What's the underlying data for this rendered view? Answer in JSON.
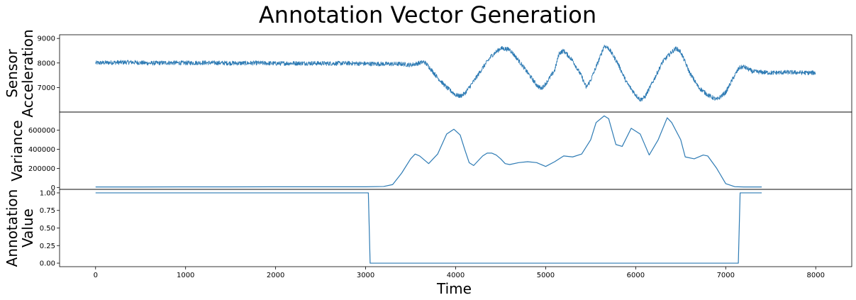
{
  "figure": {
    "title": "Annotation Vector Generation"
  },
  "chart_data": [
    {
      "type": "line",
      "ylabel": [
        "Sensor",
        "Acceleration"
      ],
      "xlabel": "",
      "xlim": [
        -400,
        8400
      ],
      "ylim": [
        6000,
        9150
      ],
      "yticks": [
        7000,
        8000,
        9000
      ],
      "yticklabels": [
        "7000",
        "8000",
        "9000"
      ],
      "series_color": "#2e7bb4",
      "noise_amplitude": 90,
      "series": [
        {
          "x": [
            0,
            200,
            400,
            600,
            800,
            1000,
            1200,
            1400,
            1600,
            1800,
            2000,
            2200,
            2400,
            2600,
            2800,
            3000,
            3200,
            3400,
            3500,
            3600,
            3650,
            3700,
            3800,
            3900,
            4000,
            4050,
            4100,
            4200,
            4300,
            4400,
            4500,
            4600,
            4700,
            4800,
            4900,
            4950,
            5000,
            5100,
            5150,
            5200,
            5300,
            5400,
            5450,
            5500,
            5600,
            5650,
            5700,
            5800,
            5900,
            6000,
            6050,
            6100,
            6200,
            6300,
            6400,
            6450,
            6500,
            6600,
            6700,
            6800,
            6900,
            7000,
            7100,
            7150,
            7200,
            7300,
            7500,
            7700,
            7900,
            8000
          ],
          "values": [
            8000,
            8020,
            8030,
            7990,
            8010,
            8000,
            8010,
            8000,
            7990,
            8000,
            7980,
            7990,
            7990,
            7980,
            7990,
            7970,
            7960,
            7960,
            7920,
            8000,
            8050,
            7860,
            7400,
            7000,
            6700,
            6650,
            6750,
            7250,
            7800,
            8300,
            8600,
            8550,
            8100,
            7600,
            7100,
            6950,
            7150,
            7700,
            8400,
            8500,
            8100,
            7450,
            7000,
            7300,
            8200,
            8700,
            8600,
            8000,
            7200,
            6700,
            6500,
            6600,
            7300,
            8050,
            8450,
            8600,
            8450,
            7600,
            7000,
            6700,
            6500,
            6800,
            7500,
            7800,
            7850,
            7650,
            7600,
            7620,
            7600,
            7600
          ]
        }
      ]
    },
    {
      "type": "line",
      "ylabel": [
        "Variance"
      ],
      "xlabel": "",
      "xlim": [
        -400,
        8400
      ],
      "ylim": [
        -20000,
        790000
      ],
      "yticks": [
        0,
        200000,
        400000,
        600000
      ],
      "yticklabels": [
        "0",
        "200000",
        "400000",
        "600000"
      ],
      "series_color": "#2e7bb4",
      "series": [
        {
          "x": [
            0,
            500,
            1000,
            1500,
            2000,
            2500,
            3000,
            3200,
            3300,
            3400,
            3500,
            3550,
            3600,
            3700,
            3800,
            3900,
            3980,
            4050,
            4100,
            4150,
            4200,
            4300,
            4350,
            4400,
            4450,
            4500,
            4550,
            4600,
            4700,
            4800,
            4900,
            5000,
            5100,
            5200,
            5300,
            5400,
            5500,
            5560,
            5650,
            5700,
            5780,
            5850,
            5950,
            6050,
            6150,
            6250,
            6350,
            6400,
            6500,
            6550,
            6650,
            6750,
            6800,
            6900,
            7000,
            7100,
            7200,
            7300,
            7400
          ],
          "values": [
            5000,
            5000,
            6000,
            6000,
            7000,
            7000,
            7000,
            10000,
            30000,
            150000,
            300000,
            350000,
            330000,
            250000,
            350000,
            560000,
            610000,
            550000,
            400000,
            260000,
            230000,
            330000,
            360000,
            360000,
            340000,
            300000,
            250000,
            240000,
            260000,
            270000,
            260000,
            220000,
            270000,
            330000,
            320000,
            350000,
            500000,
            680000,
            750000,
            720000,
            450000,
            430000,
            620000,
            560000,
            340000,
            500000,
            730000,
            680000,
            500000,
            320000,
            300000,
            340000,
            330000,
            200000,
            40000,
            8000,
            5000,
            5000,
            5000
          ]
        }
      ]
    },
    {
      "type": "line",
      "ylabel": [
        "Annotation",
        "Value"
      ],
      "xlabel": "Time",
      "xlim": [
        -400,
        8400
      ],
      "ylim": [
        -0.05,
        1.05
      ],
      "yticks": [
        0.0,
        0.25,
        0.5,
        0.75,
        1.0
      ],
      "yticklabels": [
        "0.00",
        "0.25",
        "0.50",
        "0.75",
        "1.00"
      ],
      "xticks": [
        0,
        1000,
        2000,
        3000,
        4000,
        5000,
        6000,
        7000,
        8000
      ],
      "xticklabels": [
        "0",
        "1000",
        "2000",
        "3000",
        "4000",
        "5000",
        "6000",
        "7000",
        "8000"
      ],
      "series_color": "#2e7bb4",
      "series": [
        {
          "x": [
            0,
            3030,
            3050,
            7140,
            7160,
            7400
          ],
          "values": [
            1.0,
            1.0,
            0.0,
            0.0,
            1.0,
            1.0
          ]
        }
      ]
    }
  ]
}
